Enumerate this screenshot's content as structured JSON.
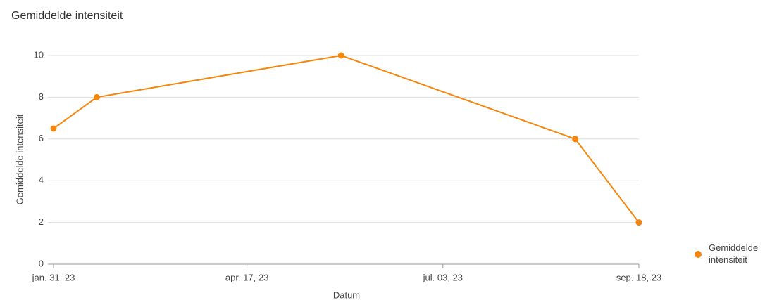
{
  "chart_data": {
    "type": "line",
    "title": "Gemiddelde intensiteit",
    "x_label": "Datum",
    "y_label": "Gemiddelde intensiteit",
    "x": [
      "2023-01-31",
      "2023-02-17",
      "2023-05-24",
      "2023-08-24",
      "2023-09-18"
    ],
    "series": [
      {
        "name": "Gemiddelde intensiteit",
        "color": "#f5860b",
        "values": [
          6.5,
          8,
          10,
          6,
          2
        ]
      }
    ],
    "xlim": [
      "2023-01-31",
      "2023-09-18"
    ],
    "xticks": [
      {
        "value": "2023-01-31",
        "label": "jan. 31, 23"
      },
      {
        "value": "2023-04-17",
        "label": "apr. 17, 23"
      },
      {
        "value": "2023-07-03",
        "label": "jul. 03, 23"
      },
      {
        "value": "2023-09-18",
        "label": "sep. 18, 23"
      }
    ],
    "ylim": [
      0,
      10
    ],
    "yticks": [
      0,
      2,
      4,
      6,
      8,
      10
    ],
    "grid": true,
    "legend": "right"
  }
}
